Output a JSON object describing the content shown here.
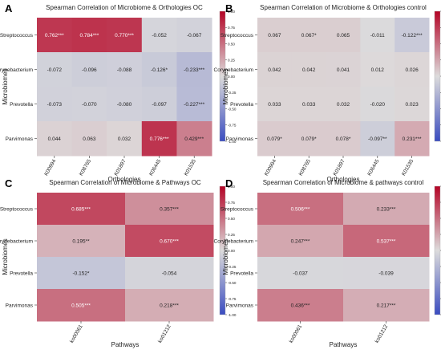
{
  "figure": {
    "colorbar_ticks": [
      "1.00",
      "0.75",
      "0.50",
      "0.25",
      "0.00",
      "-0.25",
      "-0.50",
      "-0.75",
      "-1.00"
    ],
    "colors": {
      "low": "#3a4cc0",
      "mid": "#dddcdc",
      "high": "#b40426"
    }
  },
  "chart_data": [
    {
      "panel_label": "A",
      "type": "heatmap",
      "title": "Spearman Correlation of Microbiome & Orthologies OC",
      "xlabel": "Orthologies",
      "ylabel": "Microbiomes",
      "rows": [
        "Streptococcus",
        "Corynebacterium",
        "Prevotella",
        "Parvimonas"
      ],
      "columns": [
        "K00994",
        "K08765",
        "K01897",
        "K06445",
        "K01535"
      ],
      "values": [
        [
          0.762,
          0.784,
          0.77,
          -0.052,
          -0.067
        ],
        [
          -0.072,
          -0.096,
          -0.088,
          -0.126,
          -0.233
        ],
        [
          -0.073,
          -0.07,
          -0.08,
          -0.097,
          -0.227
        ],
        [
          0.044,
          0.063,
          0.032,
          0.776,
          0.429
        ]
      ],
      "labels": [
        [
          "0.762***",
          "0.784***",
          "0.770***",
          "-0.052",
          "-0.067"
        ],
        [
          "-0.072",
          "-0.096",
          "-0.088",
          "-0.126*",
          "-0.233***"
        ],
        [
          "-0.073",
          "-0.070",
          "-0.080",
          "-0.097",
          "-0.227***"
        ],
        [
          "0.044",
          "0.063",
          "0.032",
          "0.776***",
          "0.429***"
        ]
      ],
      "color_range": [
        -1,
        1
      ]
    },
    {
      "panel_label": "B",
      "type": "heatmap",
      "title": "Spearman Correlation of Microbiome & Orthologies control",
      "xlabel": "Orthologies",
      "ylabel": "Microbiomes",
      "rows": [
        "Streptococcus",
        "Corynebacterium",
        "Prevotella",
        "Parvimonas"
      ],
      "columns": [
        "K00994",
        "K08765",
        "K01897",
        "K06445",
        "K01535"
      ],
      "values": [
        [
          0.067,
          0.067,
          0.065,
          -0.011,
          -0.122
        ],
        [
          0.042,
          0.042,
          0.041,
          0.012,
          0.026
        ],
        [
          0.033,
          0.033,
          0.032,
          -0.02,
          0.023
        ],
        [
          0.079,
          0.079,
          0.078,
          -0.097,
          0.231
        ]
      ],
      "labels": [
        [
          "0.067",
          "0.067*",
          "0.065",
          "-0.011",
          "-0.122***"
        ],
        [
          "0.042",
          "0.042",
          "0.041",
          "0.012",
          "0.026"
        ],
        [
          "0.033",
          "0.033",
          "0.032",
          "-0.020",
          "0.023"
        ],
        [
          "0.079*",
          "0.079*",
          "0.078*",
          "-0.097**",
          "0.231***"
        ]
      ],
      "color_range": [
        -1,
        1
      ]
    },
    {
      "panel_label": "C",
      "type": "heatmap",
      "title": "Spearman Correlation of Microbiome & Pathways OC",
      "xlabel": "Pathways",
      "ylabel": "Microbiomes",
      "rows": [
        "Streptococcus",
        "Corynebacterium",
        "Prevotella",
        "Parvimonas"
      ],
      "columns": [
        "ko00061",
        "ko01212"
      ],
      "values": [
        [
          0.685,
          0.357
        ],
        [
          0.195,
          0.67
        ],
        [
          -0.152,
          -0.054
        ],
        [
          0.505,
          0.218
        ]
      ],
      "labels": [
        [
          "0.685***",
          "0.357***"
        ],
        [
          "0.195**",
          "0.670***"
        ],
        [
          "-0.152*",
          "-0.054"
        ],
        [
          "0.505***",
          "0.218***"
        ]
      ],
      "color_range": [
        -1,
        1
      ]
    },
    {
      "panel_label": "D",
      "type": "heatmap",
      "title": "Spearman Correlation of Microbiome & pathways control",
      "xlabel": "Pathways",
      "ylabel": "Microbiomes",
      "rows": [
        "Streptococcus",
        "Corynebacterium",
        "Prevotella",
        "Parvimonas"
      ],
      "columns": [
        "ko00061",
        "ko01212"
      ],
      "values": [
        [
          0.506,
          0.233
        ],
        [
          0.247,
          0.537
        ],
        [
          -0.037,
          -0.039
        ],
        [
          0.436,
          0.217
        ]
      ],
      "labels": [
        [
          "0.506***",
          "0.233***"
        ],
        [
          "0.247***",
          "0.537***"
        ],
        [
          "-0.037",
          "-0.039"
        ],
        [
          "0.436***",
          "0.217***"
        ]
      ],
      "color_range": [
        -1,
        1
      ]
    }
  ]
}
